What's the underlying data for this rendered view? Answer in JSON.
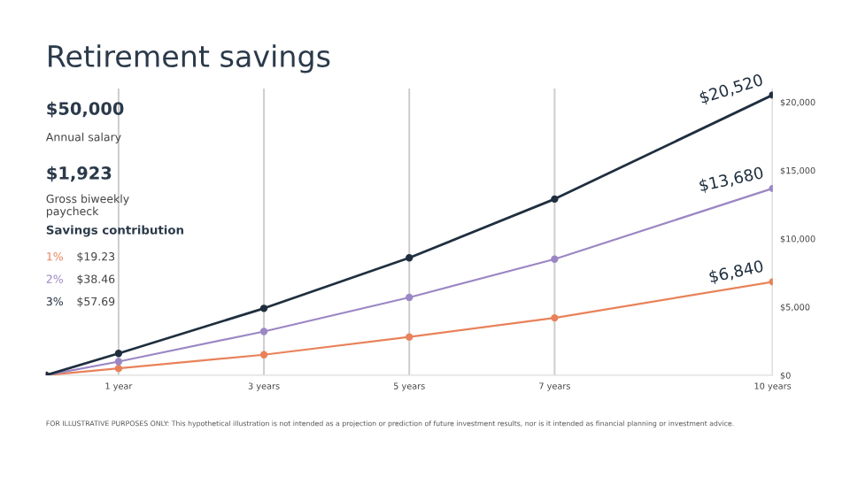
{
  "chart_data": {
    "type": "line",
    "title": "Retirement savings",
    "x": [
      0,
      1,
      3,
      5,
      7,
      10
    ],
    "series": [
      {
        "name": "1%",
        "color": "#e8825a",
        "values": [
          0,
          500,
          1500,
          2800,
          4200,
          6840
        ],
        "value_labels": [
          null,
          null,
          null,
          null,
          null,
          "$6,840"
        ]
      },
      {
        "name": "2%",
        "color": "#9b87c4",
        "values": [
          0,
          1000,
          3200,
          5700,
          8500,
          13680
        ],
        "value_labels": [
          null,
          null,
          null,
          null,
          null,
          "$13,680"
        ]
      },
      {
        "name": "3%",
        "color": "#1f2f3f",
        "values": [
          0,
          1600,
          4900,
          8600,
          12900,
          20520
        ],
        "value_labels": [
          null,
          null,
          null,
          null,
          null,
          "$20,520"
        ]
      }
    ],
    "xlim": [
      0,
      10
    ],
    "xticks": [
      {
        "value": 1,
        "label": "1 year"
      },
      {
        "value": 3,
        "label": "3 years"
      },
      {
        "value": 5,
        "label": "5 years"
      },
      {
        "value": 7,
        "label": "7 years"
      },
      {
        "value": 10,
        "label": "10 years"
      }
    ],
    "ylim": [
      0,
      21000
    ],
    "yticks": [
      {
        "value": 0,
        "label": "$0"
      },
      {
        "value": 5000,
        "label": "$5,000"
      },
      {
        "value": 10000,
        "label": "$10,000"
      },
      {
        "value": 15000,
        "label": "$15,000"
      },
      {
        "value": 20000,
        "label": "$20,000"
      }
    ],
    "grid": "x",
    "marker": "circle",
    "line_style": "solid",
    "legend": "left",
    "annotations": [
      "$50,000",
      "Annual salary",
      "$1,923",
      "Gross biweekly paycheck",
      "Savings contribution",
      "$19.23",
      "$38.46",
      "$57.69",
      "FOR ILLUSTRATIVE PURPOSES ONLY: This hypothetical illustration is not intended as a projection or prediction of future investment results, nor is it intended as financial planning or investment advice."
    ]
  }
}
